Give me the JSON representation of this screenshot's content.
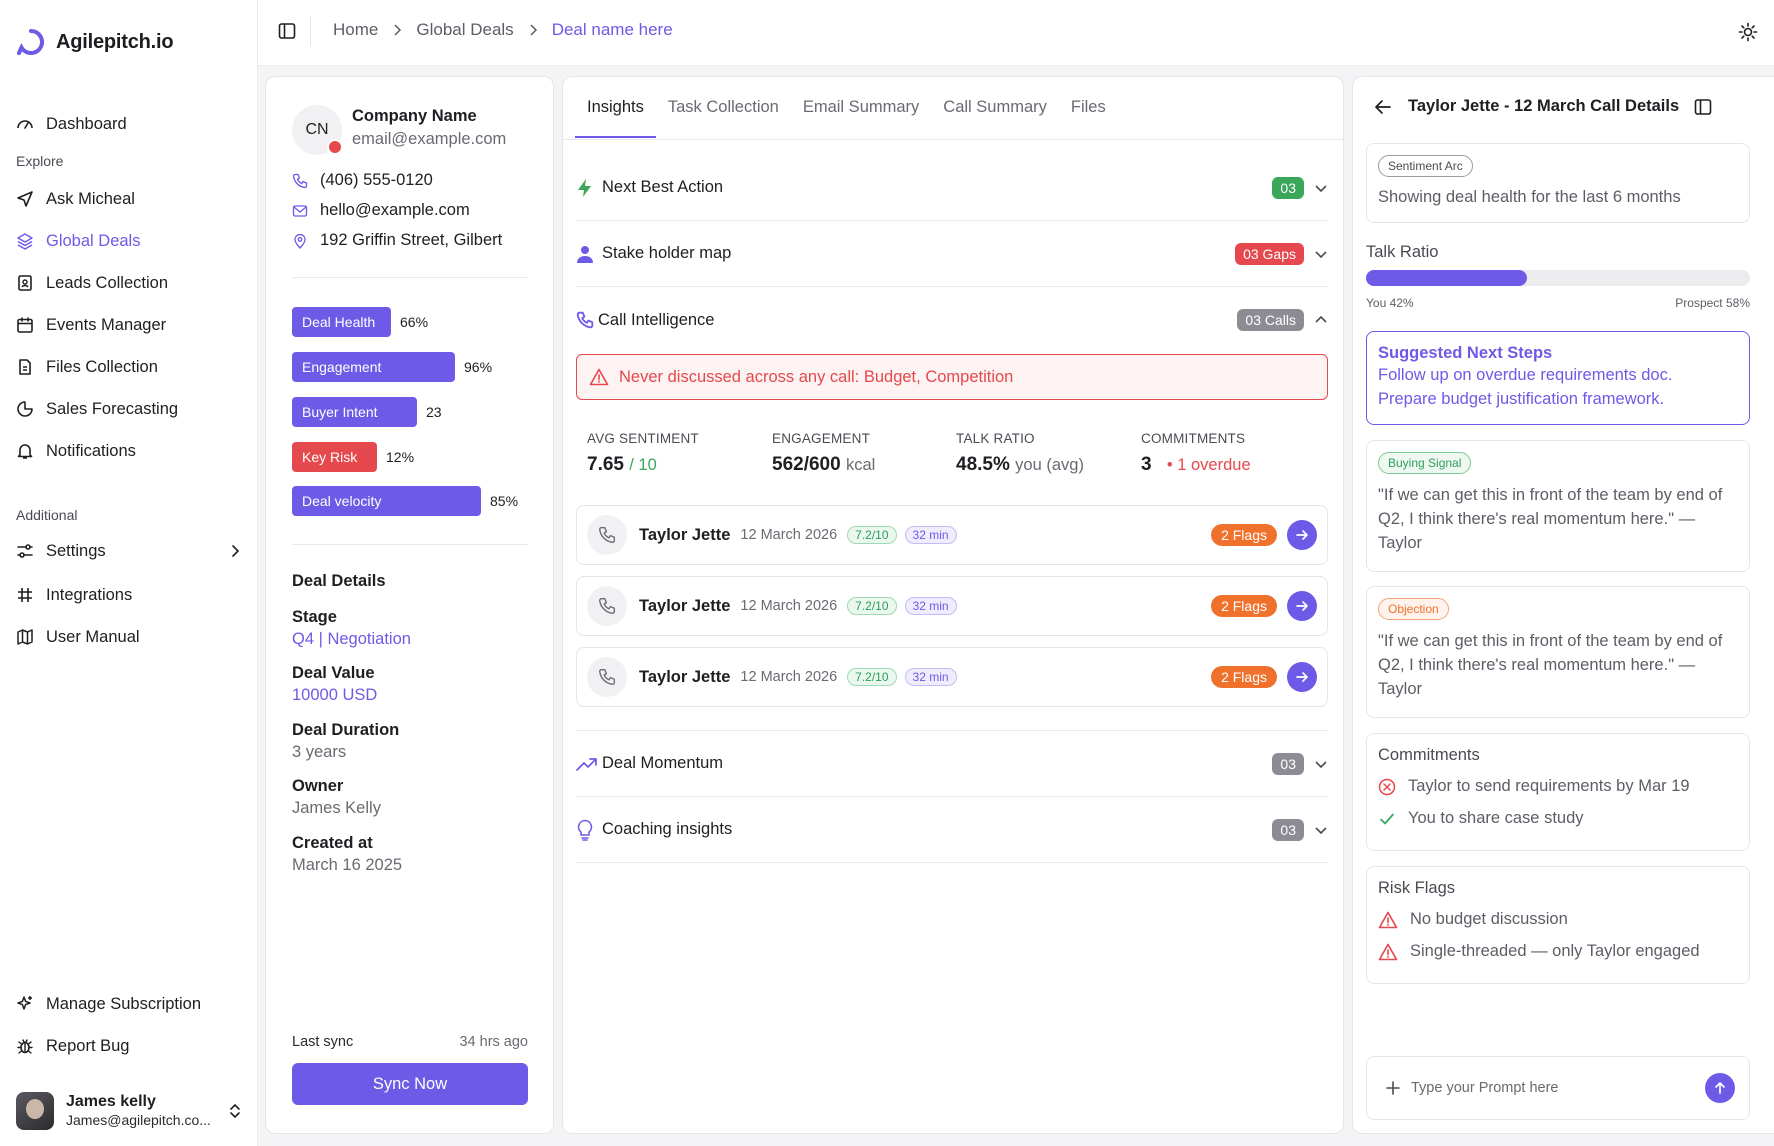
{
  "brand": {
    "name": "Agilepitch.io"
  },
  "nav": {
    "dashboard": "Dashboard",
    "explore_label": "Explore",
    "ask": "Ask Micheal",
    "global_deals": "Global Deals",
    "leads": "Leads Collection",
    "events": "Events Manager",
    "files": "Files Collection",
    "forecasting": "Sales Forecasting",
    "notifications": "Notifications",
    "additional_label": "Additional",
    "settings": "Settings",
    "integrations": "Integrations",
    "manual": "User Manual",
    "subscription": "Manage Subscription",
    "bug": "Report Bug"
  },
  "user": {
    "name": "James kelly",
    "email": "James@agilepitch.co..."
  },
  "breadcrumb": {
    "home": "Home",
    "section": "Global Deals",
    "current": "Deal name here"
  },
  "company": {
    "initials": "CN",
    "name": "Company Name",
    "email": "email@example.com",
    "phone": "(406) 555-0120",
    "contact_email": "hello@example.com",
    "address": "192 Griffin Street, Gilbert"
  },
  "metrics": [
    {
      "label": "Deal Health",
      "value": "66%",
      "level": 0.42
    },
    {
      "label": "Engagement",
      "value": "96%",
      "level": 0.69
    },
    {
      "label": "Buyer Intent",
      "value": "23",
      "level": 0.53
    },
    {
      "label": "Key Risk",
      "value": "12%",
      "level": 0.36
    },
    {
      "label": "Deal velocity",
      "value": "85%",
      "level": 0.8
    }
  ],
  "deal_details": {
    "title": "Deal Details",
    "stage_label": "Stage",
    "stage": "Q4 | Negotiation",
    "value_label": "Deal Value",
    "value": "10000 USD",
    "duration_label": "Deal Duration",
    "duration": "3 years",
    "owner_label": "Owner",
    "owner": "James Kelly",
    "created_label": "Created at",
    "created": "March 16 2025"
  },
  "sync": {
    "label": "Last sync",
    "time": "34 hrs ago",
    "button": "Sync Now"
  },
  "tabs": [
    "Insights",
    "Task Collection",
    "Email Summary",
    "Call Summary",
    "Files"
  ],
  "accordions": {
    "next_best_action": {
      "title": "Next Best Action",
      "badge": "03"
    },
    "stakeholder": {
      "title": "Stake holder map",
      "badge": "03 Gaps"
    },
    "call_intel": {
      "title": "Call Intelligence",
      "badge": "03 Calls"
    },
    "momentum": {
      "title": "Deal Momentum",
      "badge": "03"
    },
    "coaching": {
      "title": "Coaching insights",
      "badge": "03"
    }
  },
  "alert": "Never discussed across any call: Budget, Competition",
  "stats": {
    "sentiment_label": "AVG SENTIMENT",
    "sentiment": "7.65",
    "sentiment_sub": "/ 10",
    "engagement_label": "ENGAGEMENT",
    "engagement": "562/600",
    "engagement_sub": "kcal",
    "talk_label": "TALK RATIO",
    "talk": "48.5%",
    "talk_sub": "you (avg)",
    "commit_label": "COMMITMENTS",
    "commit": "3",
    "commit_sub": "1 overdue"
  },
  "calls": [
    {
      "name": "Taylor Jette",
      "date": "12 March 2026",
      "score": "7.2/10",
      "duration": "32 min",
      "flags": "2 Flags"
    },
    {
      "name": "Taylor Jette",
      "date": "12 March 2026",
      "score": "7.2/10",
      "duration": "32 min",
      "flags": "2 Flags"
    },
    {
      "name": "Taylor Jette",
      "date": "12 March 2026",
      "score": "7.2/10",
      "duration": "32 min",
      "flags": "2 Flags"
    }
  ],
  "call_details": {
    "title": "Taylor Jette - 12 March Call Details",
    "sentiment_badge": "Sentiment Arc",
    "sentiment_text": "Showing deal health for the last 6 months",
    "talk_ratio_label": "Talk Ratio",
    "talk_you": "You 42%",
    "talk_prospect": "Prospect 58%",
    "talk_you_fraction": 0.42,
    "next_steps_title": "Suggested Next Steps",
    "next_steps": [
      "Follow up on overdue requirements doc.",
      "Prepare budget justification framework."
    ],
    "buying_badge": "Buying Signal",
    "buying_quote": "\"If we can get this in front of the team by end of Q2, I think there's real momentum here.\" — Taylor",
    "objection_badge": "Objection",
    "objection_quote": "\"If we can get this in front of the team by end of Q2, I think there's real momentum here.\" — Taylor",
    "commitments_title": "Commitments",
    "commitments": [
      "Taylor to send requirements by Mar 19",
      "You to share case study"
    ],
    "risk_title": "Risk Flags",
    "risks": [
      "No budget discussion",
      "Single-threaded — only Taylor engaged"
    ],
    "prompt_placeholder": "Type your Prompt here"
  },
  "colors": {
    "accent": "#6d5ae6",
    "danger": "#e5484d",
    "success": "#3aa65a",
    "warning": "#f0712c",
    "neutral_badge": "#8c8c94"
  }
}
